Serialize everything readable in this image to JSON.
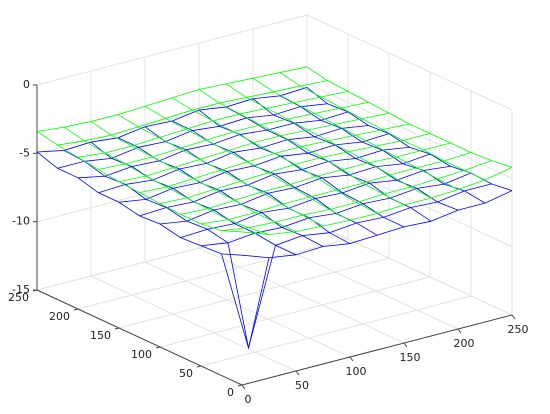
{
  "chart_data": {
    "type": "mesh3d",
    "x": [
      0,
      25,
      50,
      75,
      100,
      125,
      150,
      175,
      200,
      225,
      250
    ],
    "y": [
      0,
      25,
      50,
      75,
      100,
      125,
      150,
      175,
      200,
      225,
      250
    ],
    "xlim": [
      0,
      250
    ],
    "ylim": [
      0,
      250
    ],
    "zlim": [
      -15,
      0
    ],
    "xticks": [
      0,
      50,
      100,
      150,
      200,
      250
    ],
    "yticks": [
      0,
      50,
      100,
      150,
      200,
      250
    ],
    "zticks": [
      -15,
      -10,
      -5,
      0
    ],
    "grid": true,
    "series": [
      {
        "color": "#0000ff",
        "values": [
          [
            -5.5,
            -6.2,
            -6.5,
            -6.4,
            -6.7,
            -6.6,
            -6.5,
            -6.6,
            -6.3,
            -6.3,
            -5.9
          ],
          [
            -6.1,
            -13.5,
            -6.5,
            -6.3,
            -6.6,
            -6.4,
            -6.5,
            -6.3,
            -6.4,
            -6.1,
            -6.1
          ],
          [
            -6.2,
            -6.5,
            -6.3,
            -6.4,
            -6.2,
            -6.4,
            -6.2,
            -6.3,
            -6.1,
            -6.3,
            -6.0
          ],
          [
            -6.3,
            -6.2,
            -6.3,
            -6.0,
            -6.2,
            -6.0,
            -6.1,
            -5.9,
            -6.2,
            -6.0,
            -6.2
          ],
          [
            -6.0,
            -6.3,
            -6.0,
            -6.1,
            -5.8,
            -5.9,
            -5.7,
            -6.0,
            -5.9,
            -6.2,
            -6.0
          ],
          [
            -6.1,
            -6.0,
            -6.1,
            -5.8,
            -5.9,
            -5.6,
            -5.8,
            -5.7,
            -6.0,
            -5.9,
            -6.2
          ],
          [
            -5.8,
            -6.1,
            -5.8,
            -5.9,
            -5.6,
            -5.7,
            -5.5,
            -5.8,
            -5.7,
            -6.0,
            -5.9
          ],
          [
            -5.8,
            -5.7,
            -5.9,
            -5.6,
            -5.7,
            -5.4,
            -5.6,
            -5.5,
            -5.8,
            -5.7,
            -6.0
          ],
          [
            -5.4,
            -5.8,
            -5.6,
            -5.7,
            -5.4,
            -5.5,
            -5.3,
            -5.5,
            -5.5,
            -5.8,
            -5.7
          ],
          [
            -5.4,
            -5.4,
            -5.7,
            -5.4,
            -5.5,
            -5.2,
            -5.4,
            -5.3,
            -5.6,
            -5.5,
            -5.8
          ],
          [
            -4.9,
            -5.3,
            -5.2,
            -5.4,
            -5.1,
            -5.2,
            -4.9,
            -5.2,
            -5.1,
            -5.4,
            -5.3
          ]
        ]
      },
      {
        "color": "#00ff00",
        "values": [
          [
            -3.8,
            -4.5,
            -4.8,
            -4.9,
            -5.0,
            -5.0,
            -4.9,
            -4.9,
            -4.8,
            -4.6,
            -4.2
          ],
          [
            -4.4,
            -4.7,
            -4.8,
            -4.8,
            -4.9,
            -4.9,
            -4.8,
            -4.8,
            -4.7,
            -4.6,
            -4.4
          ],
          [
            -4.6,
            -4.8,
            -4.8,
            -4.7,
            -4.7,
            -4.7,
            -4.7,
            -4.6,
            -4.6,
            -4.6,
            -4.5
          ],
          [
            -4.6,
            -4.7,
            -4.6,
            -4.5,
            -4.5,
            -4.4,
            -4.4,
            -4.4,
            -4.5,
            -4.5,
            -4.5
          ],
          [
            -4.5,
            -4.6,
            -4.5,
            -4.4,
            -4.3,
            -4.2,
            -4.2,
            -4.3,
            -4.4,
            -4.5,
            -4.5
          ],
          [
            -4.4,
            -4.5,
            -4.4,
            -4.3,
            -4.2,
            -4.1,
            -4.1,
            -4.2,
            -4.3,
            -4.4,
            -4.5
          ],
          [
            -4.3,
            -4.4,
            -4.3,
            -4.2,
            -4.1,
            -4.0,
            -4.0,
            -4.1,
            -4.2,
            -4.3,
            -4.4
          ],
          [
            -4.1,
            -4.2,
            -4.2,
            -4.1,
            -4.0,
            -3.9,
            -3.9,
            -4.0,
            -4.1,
            -4.2,
            -4.3
          ],
          [
            -3.9,
            -4.1,
            -4.1,
            -4.0,
            -3.9,
            -3.8,
            -3.8,
            -3.9,
            -4.0,
            -4.1,
            -4.2
          ],
          [
            -3.7,
            -3.9,
            -4.0,
            -3.9,
            -3.8,
            -3.7,
            -3.7,
            -3.8,
            -3.9,
            -4.0,
            -4.1
          ],
          [
            -3.4,
            -3.6,
            -3.7,
            -3.7,
            -3.6,
            -3.5,
            -3.4,
            -3.5,
            -3.6,
            -3.7,
            -3.8
          ]
        ]
      }
    ]
  }
}
